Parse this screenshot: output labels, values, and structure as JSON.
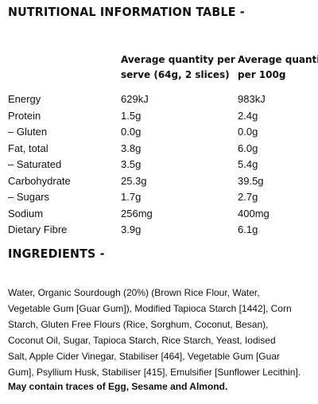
{
  "title": "NUTRITIONAL INFORMATION TABLE -",
  "columns": {
    "per_serve": [
      "Average quantity per",
      "serve (64g, 2 slices)"
    ],
    "per_100g": [
      "Average quantity",
      "per 100g"
    ]
  },
  "rows": [
    {
      "name": "Energy",
      "serve": "629kJ",
      "per100": "983kJ"
    },
    {
      "name": "Protein",
      "serve": "1.5g",
      "per100": "2.4g"
    },
    {
      "name": "– Gluten",
      "serve": "0.0g",
      "per100": "0.0g"
    },
    {
      "name": "Fat, total",
      "serve": "3.8g",
      "per100": "6.0g"
    },
    {
      "name": "– Saturated",
      "serve": "3.5g",
      "per100": "5.4g"
    },
    {
      "name": "Carbohydrate",
      "serve": "25.3g",
      "per100": "39.5g"
    },
    {
      "name": "– Sugars",
      "serve": "1.7g",
      "per100": "2.7g"
    },
    {
      "name": "Sodium",
      "serve": "256mg",
      "per100": "400mg"
    },
    {
      "name": "Dietary Fibre",
      "serve": "3.9g",
      "per100": "6.1g"
    }
  ],
  "ingredients_title": "INGREDIENTS -",
  "ingredients_lines": [
    "Water, Organic Sourdough (20%) (Brown Rice Flour, Water,",
    "Vegetable Gum [Guar Gum]), Modified Tapioca Starch [1442], Corn",
    "Starch, Gluten Free Flours (Rice, Sorghum, Coconut, Besan),",
    "Coconut Oil, Sugar, Tapioca Starch, Rice Starch, Yeast, Iodised",
    "Salt, Apple Cider Vinegar, Stabiliser [464], Vegetable Gum [Guar",
    "Gum], Psyllium Husk, Stabiliser [415], Emulsifier [Sunflower Lecithin]."
  ],
  "allergen_note": "May contain traces of Egg, Sesame and Almond."
}
